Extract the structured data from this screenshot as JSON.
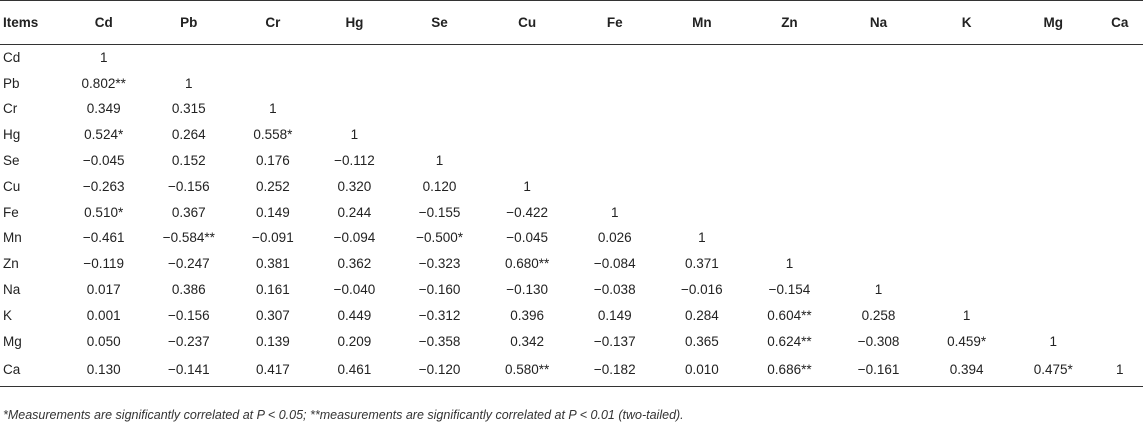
{
  "table": {
    "headers": [
      "Items",
      "Cd",
      "Pb",
      "Cr",
      "Hg",
      "Se",
      "Cu",
      "Fe",
      "Mn",
      "Zn",
      "Na",
      "K",
      "Mg",
      "Ca"
    ],
    "rows": [
      [
        "Cd",
        "1",
        "",
        "",
        "",
        "",
        "",
        "",
        "",
        "",
        "",
        "",
        "",
        ""
      ],
      [
        "Pb",
        "0.802**",
        "1",
        "",
        "",
        "",
        "",
        "",
        "",
        "",
        "",
        "",
        "",
        ""
      ],
      [
        "Cr",
        "0.349",
        "0.315",
        "1",
        "",
        "",
        "",
        "",
        "",
        "",
        "",
        "",
        "",
        ""
      ],
      [
        "Hg",
        "0.524*",
        "0.264",
        "0.558*",
        "1",
        "",
        "",
        "",
        "",
        "",
        "",
        "",
        "",
        ""
      ],
      [
        "Se",
        "−0.045",
        "0.152",
        "0.176",
        "−0.112",
        "1",
        "",
        "",
        "",
        "",
        "",
        "",
        "",
        ""
      ],
      [
        "Cu",
        "−0.263",
        "−0.156",
        "0.252",
        "0.320",
        "0.120",
        "1",
        "",
        "",
        "",
        "",
        "",
        "",
        ""
      ],
      [
        "Fe",
        "0.510*",
        "0.367",
        "0.149",
        "0.244",
        "−0.155",
        "−0.422",
        "1",
        "",
        "",
        "",
        "",
        "",
        ""
      ],
      [
        "Mn",
        "−0.461",
        "−0.584**",
        "−0.091",
        "−0.094",
        "−0.500*",
        "−0.045",
        "0.026",
        "1",
        "",
        "",
        "",
        "",
        ""
      ],
      [
        "Zn",
        "−0.119",
        "−0.247",
        "0.381",
        "0.362",
        "−0.323",
        "0.680**",
        "−0.084",
        "0.371",
        "1",
        "",
        "",
        "",
        ""
      ],
      [
        "Na",
        "0.017",
        "0.386",
        "0.161",
        "−0.040",
        "−0.160",
        "−0.130",
        "−0.038",
        "−0.016",
        "−0.154",
        "1",
        "",
        "",
        ""
      ],
      [
        "K",
        "0.001",
        "−0.156",
        "0.307",
        "0.449",
        "−0.312",
        "0.396",
        "0.149",
        "0.284",
        "0.604**",
        "0.258",
        "1",
        "",
        ""
      ],
      [
        "Mg",
        "0.050",
        "−0.237",
        "0.139",
        "0.209",
        "−0.358",
        "0.342",
        "−0.137",
        "0.365",
        "0.624**",
        "−0.308",
        "0.459*",
        "1",
        ""
      ],
      [
        "Ca",
        "0.130",
        "−0.141",
        "0.417",
        "0.461",
        "−0.120",
        "0.580**",
        "−0.182",
        "0.010",
        "0.686**",
        "−0.161",
        "0.394",
        "0.475*",
        "1"
      ]
    ]
  },
  "footnote": "*Measurements are significantly correlated at P < 0.05; **measurements are significantly correlated at P < 0.01 (two-tailed)."
}
